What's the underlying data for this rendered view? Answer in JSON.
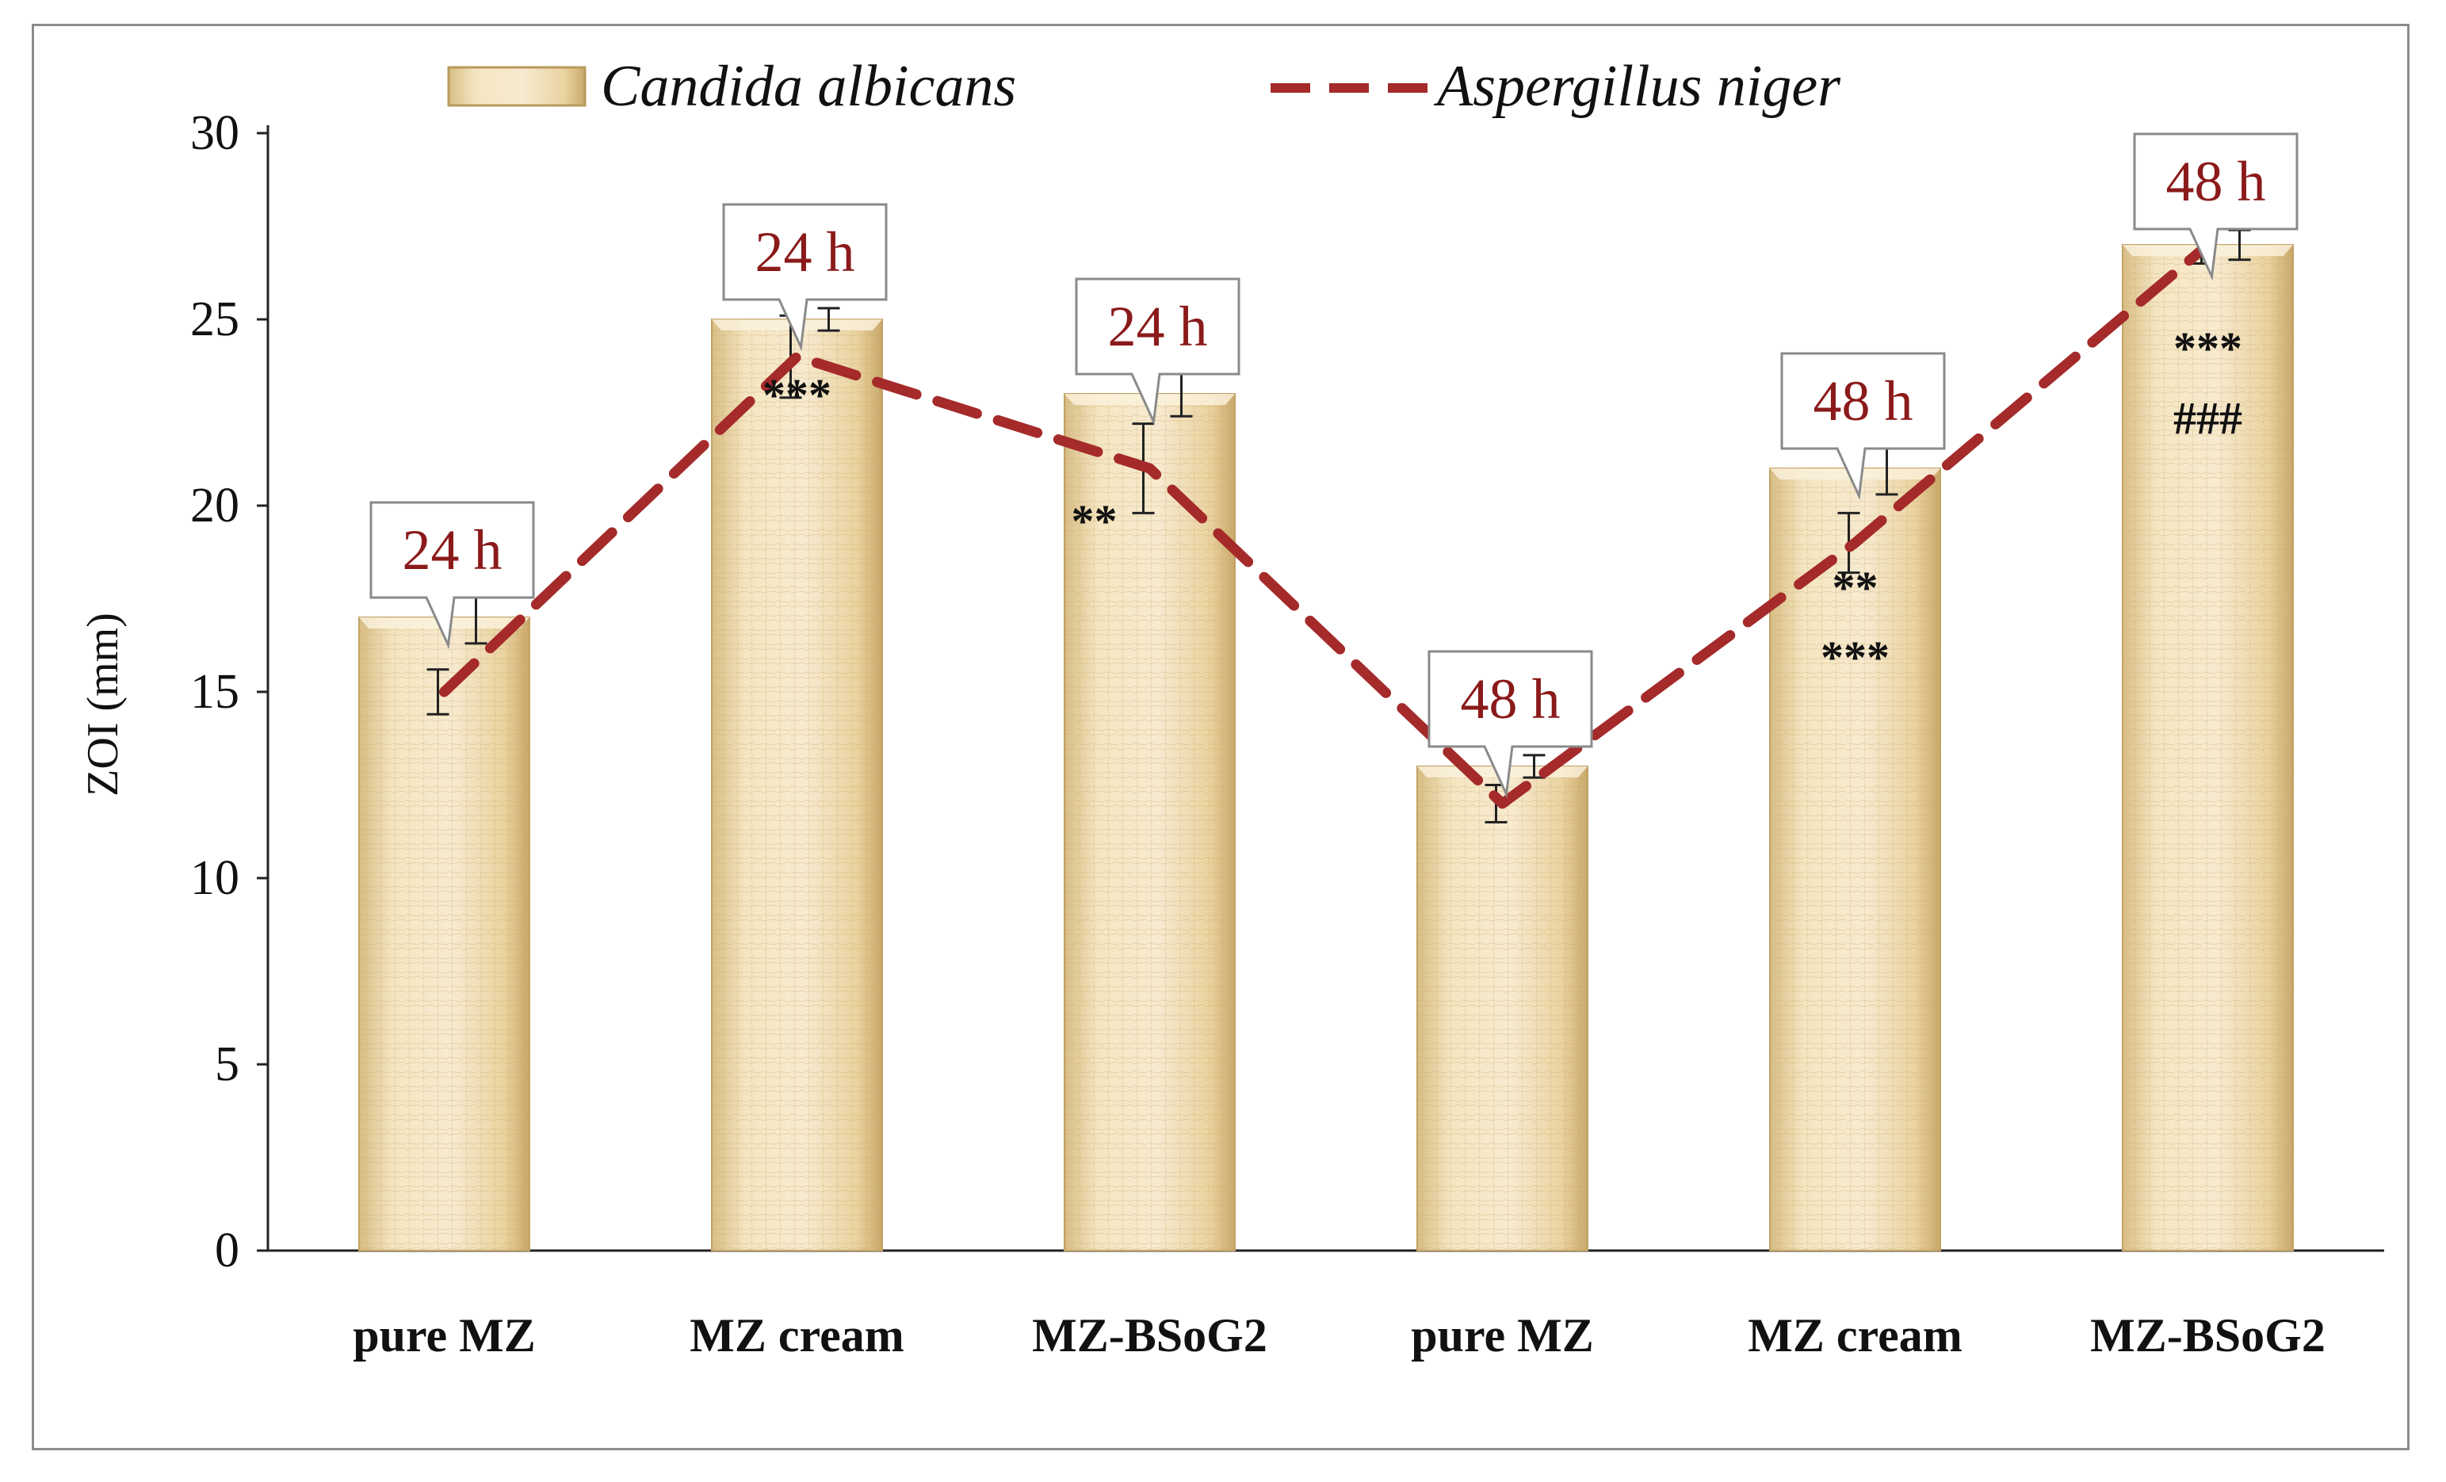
{
  "chart_data": {
    "type": "bar",
    "title": "",
    "xlabel": "",
    "ylabel": "ZOI (mm)",
    "ylim": [
      0,
      30
    ],
    "yticks": [
      "0",
      "5",
      "10",
      "15",
      "20",
      "25",
      "30"
    ],
    "categories": [
      "pure MZ",
      "MZ cream",
      "MZ-BSoG2",
      "pure MZ",
      "MZ cream",
      "MZ-BSoG2"
    ],
    "legend_position": "top",
    "series": [
      {
        "name": "Candida albicans",
        "kind": "bar",
        "values": [
          17,
          25,
          23,
          13,
          21,
          27
        ],
        "error_upper": [
          0.7,
          0.3,
          0.6,
          0.3,
          0.7,
          0.4
        ]
      },
      {
        "name": "Aspergillus niger",
        "kind": "line",
        "style": "dashed",
        "color": "#a52a2a",
        "values": [
          15,
          24,
          21,
          12,
          19,
          27
        ],
        "errors": [
          0.6,
          1.1,
          1.2,
          0.5,
          0.8,
          0.5
        ]
      }
    ],
    "time_labels": [
      "24 h",
      "24 h",
      "24 h",
      "48 h",
      "48 h",
      "48 h"
    ],
    "significance": [
      [],
      [
        "***"
      ],
      [
        "**"
      ],
      [],
      [
        "**",
        "***"
      ],
      [
        "***",
        "###"
      ]
    ],
    "colors": {
      "bar_fill": "#f3e3bc",
      "bar_shade": "#d9be86",
      "line": "#a52a2a",
      "callout_text": "#8b1a1a"
    }
  }
}
